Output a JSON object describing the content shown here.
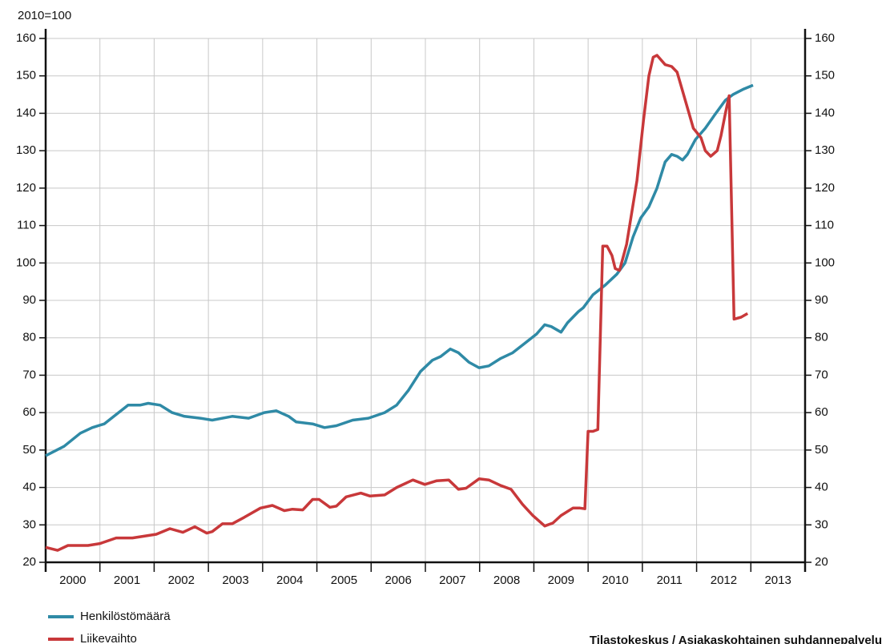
{
  "chart_data": {
    "type": "line",
    "y_axis_label": "2010=100",
    "source": "Tilastokeskus / Asiakaskohtainen suhdannepalvelu",
    "xlim": [
      2000,
      2014
    ],
    "xticks": [
      2000,
      2001,
      2002,
      2003,
      2004,
      2005,
      2006,
      2007,
      2008,
      2009,
      2010,
      2011,
      2012,
      2013,
      2014
    ],
    "categories": [
      "2000",
      "2001",
      "2002",
      "2003",
      "2004",
      "2005",
      "2006",
      "2007",
      "2008",
      "2009",
      "2010",
      "2011",
      "2012",
      "2013"
    ],
    "ylim": [
      20,
      160
    ],
    "yticks": [
      20,
      30,
      40,
      50,
      60,
      70,
      80,
      90,
      100,
      110,
      120,
      130,
      140,
      150,
      160
    ],
    "y2lim": [
      20,
      160
    ],
    "y2ticks": [
      20,
      30,
      40,
      50,
      60,
      70,
      80,
      90,
      100,
      110,
      120,
      130,
      140,
      150,
      160
    ],
    "grid": true,
    "legend": "bottom-left",
    "series": [
      {
        "name": "Henkilöstömäärä",
        "color": "#2f8aa6",
        "x": [
          2000.0,
          2000.34,
          2000.64,
          2000.86,
          2001.08,
          2001.3,
          2001.52,
          2001.74,
          2001.89,
          2002.11,
          2002.33,
          2002.56,
          2002.85,
          2003.07,
          2003.44,
          2003.74,
          2004.03,
          2004.25,
          2004.48,
          2004.62,
          2004.92,
          2005.14,
          2005.36,
          2005.66,
          2005.95,
          2006.25,
          2006.47,
          2006.69,
          2006.91,
          2007.13,
          2007.28,
          2007.46,
          2007.61,
          2007.8,
          2007.99,
          2008.17,
          2008.39,
          2008.61,
          2008.83,
          2009.05,
          2009.2,
          2009.32,
          2009.5,
          2009.62,
          2009.82,
          2009.91,
          2010.09,
          2010.31,
          2010.53,
          2010.68,
          2010.83,
          2010.97,
          2011.12,
          2011.27,
          2011.42,
          2011.54,
          2011.64,
          2011.74,
          2011.83,
          2011.98,
          2012.16,
          2012.33,
          2012.53,
          2012.67,
          2012.87,
          2013.04
        ],
        "values": [
          48.5,
          51,
          54.5,
          56,
          57,
          59.5,
          62,
          62,
          62.5,
          62,
          60,
          59,
          58.5,
          58,
          59,
          58.5,
          60,
          60.5,
          59,
          57.5,
          57,
          56,
          56.5,
          58,
          58.5,
          60,
          62,
          66,
          71,
          74,
          75,
          77,
          76,
          73.5,
          72,
          72.5,
          74.5,
          76,
          78.5,
          81,
          83.5,
          83,
          81.5,
          84,
          87,
          88,
          91.5,
          94,
          97,
          100,
          107,
          112,
          115,
          120,
          127,
          129,
          128.5,
          127.5,
          129,
          133,
          136,
          139.5,
          143.5,
          145,
          146.5,
          147.5
        ]
      },
      {
        "name": "Liikevaihto",
        "color": "#c8383a",
        "x": [
          2000.0,
          2000.22,
          2000.41,
          2000.78,
          2001.0,
          2001.3,
          2001.6,
          2002.04,
          2002.29,
          2002.53,
          2002.75,
          2002.97,
          2003.07,
          2003.26,
          2003.44,
          2003.66,
          2003.96,
          2004.18,
          2004.4,
          2004.55,
          2004.74,
          2004.92,
          2005.04,
          2005.24,
          2005.36,
          2005.54,
          2005.81,
          2005.98,
          2006.25,
          2006.47,
          2006.77,
          2006.99,
          2007.21,
          2007.43,
          2007.61,
          2007.75,
          2007.99,
          2008.17,
          2008.39,
          2008.58,
          2008.79,
          2008.98,
          2009.2,
          2009.35,
          2009.5,
          2009.72,
          2009.85,
          2009.94,
          2010.0,
          2010.09,
          2010.18,
          2010.27,
          2010.35,
          2010.44,
          2010.5,
          2010.58,
          2010.71,
          2010.9,
          2011.02,
          2011.12,
          2011.2,
          2011.27,
          2011.42,
          2011.54,
          2011.64,
          2011.74,
          2011.94,
          2012.08,
          2012.16,
          2012.26,
          2012.38,
          2012.45,
          2012.53,
          2012.6,
          2012.69,
          2012.82,
          2012.94
        ],
        "values": [
          24,
          23.2,
          24.5,
          24.5,
          25,
          26.5,
          26.5,
          27.5,
          29,
          28,
          29.5,
          27.8,
          28.2,
          30.3,
          30.3,
          32,
          34.5,
          35.2,
          33.8,
          34.2,
          34,
          36.8,
          36.8,
          34.7,
          35,
          37.5,
          38.5,
          37.7,
          38,
          40,
          42,
          40.8,
          41.8,
          42,
          39.5,
          39.8,
          42.3,
          42,
          40.5,
          39.5,
          35.5,
          32.5,
          29.7,
          30.5,
          32.5,
          34.5,
          34.5,
          34.3,
          55,
          55,
          55.5,
          104.5,
          104.5,
          102,
          98.5,
          98,
          105,
          122,
          138,
          150,
          155,
          155.5,
          153,
          152.5,
          151,
          146,
          136,
          133.5,
          130,
          128.5,
          130,
          134,
          140,
          144.7,
          85,
          85.5,
          86.5
        ]
      }
    ]
  }
}
